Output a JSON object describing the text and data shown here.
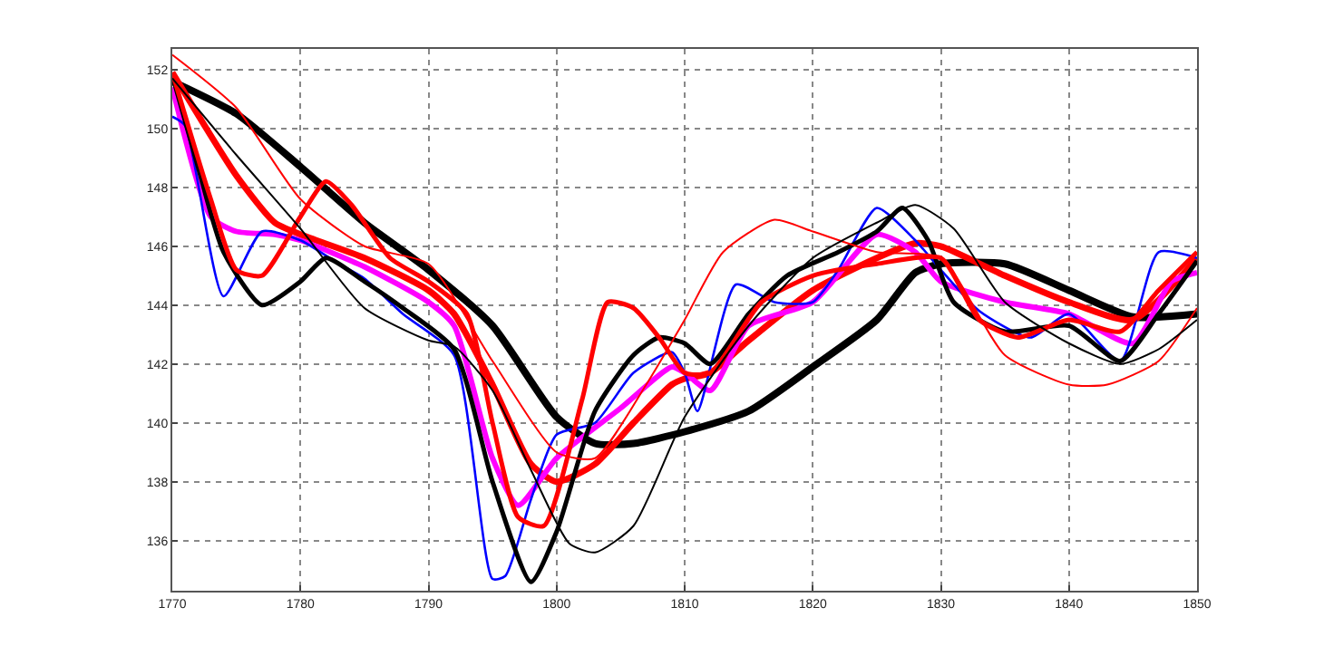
{
  "chart_data": {
    "type": "line",
    "xlim": [
      1770,
      1850
    ],
    "ylim": [
      134.3,
      152.7
    ],
    "xticks": [
      1770,
      1780,
      1790,
      1800,
      1810,
      1820,
      1830,
      1840,
      1850
    ],
    "yticks": [
      136,
      138,
      140,
      142,
      144,
      146,
      148,
      150,
      152
    ],
    "grid": true,
    "marker": "none",
    "series": [
      {
        "color": "#000000",
        "x": [
          1770,
          1775,
          1780,
          1785,
          1790,
          1795,
          1800,
          1803,
          1806,
          1810,
          1815,
          1820,
          1825,
          1828,
          1830,
          1835,
          1840,
          1845,
          1850
        ],
        "values": [
          151.6,
          150.5,
          148.7,
          146.8,
          145.2,
          143.3,
          140.2,
          139.3,
          139.3,
          139.7,
          140.4,
          141.9,
          143.5,
          145.1,
          145.4,
          145.4,
          144.5,
          143.6,
          143.7
        ]
      },
      {
        "color": "#ff0000",
        "x": [
          1770,
          1775,
          1778,
          1780,
          1785,
          1790,
          1792,
          1795,
          1798,
          1800,
          1803,
          1806,
          1809,
          1810,
          1812,
          1815,
          1820,
          1825,
          1828,
          1830,
          1835,
          1840,
          1845,
          1850
        ],
        "values": [
          151.9,
          148.4,
          146.8,
          146.4,
          145.6,
          144.5,
          143.7,
          141.3,
          138.6,
          138.0,
          138.6,
          140.0,
          141.3,
          141.5,
          141.7,
          142.8,
          144.5,
          145.6,
          146.1,
          146.0,
          145.0,
          144.1,
          143.5,
          145.6
        ]
      },
      {
        "color": "#ff00ff",
        "x": [
          1770,
          1773,
          1775,
          1778,
          1780,
          1785,
          1790,
          1792,
          1795,
          1797,
          1800,
          1805,
          1809,
          1810,
          1812,
          1815,
          1820,
          1825,
          1828,
          1830,
          1835,
          1840,
          1845,
          1848,
          1850
        ],
        "values": [
          151.4,
          147.0,
          146.5,
          146.4,
          146.2,
          145.3,
          144.1,
          143.3,
          138.8,
          137.2,
          138.8,
          140.5,
          141.9,
          141.7,
          141.1,
          143.3,
          144.1,
          146.4,
          145.8,
          144.8,
          144.1,
          143.7,
          142.7,
          144.8,
          145.1
        ]
      },
      {
        "color": "#0000ff",
        "x": [
          1770,
          1771,
          1774,
          1777,
          1780,
          1783,
          1785,
          1788,
          1792,
          1795,
          1796,
          1798,
          1800,
          1803,
          1806,
          1809,
          1810,
          1811,
          1814,
          1817,
          1820,
          1822,
          1825,
          1828,
          1830,
          1833,
          1837,
          1840,
          1844,
          1847,
          1850
        ],
        "values": [
          150.4,
          150.1,
          144.3,
          146.5,
          146.2,
          145.4,
          144.9,
          143.7,
          142.3,
          134.7,
          134.8,
          137.4,
          139.6,
          140.0,
          141.7,
          142.4,
          141.7,
          140.4,
          144.7,
          144.1,
          144.1,
          145.2,
          147.3,
          146.2,
          145.2,
          143.8,
          142.9,
          143.7,
          142.1,
          145.8,
          145.6
        ]
      },
      {
        "color": "#000000",
        "x": [
          1770,
          1772,
          1774,
          1777,
          1780,
          1782,
          1785,
          1788,
          1792,
          1795,
          1798,
          1800,
          1803,
          1806,
          1808,
          1810,
          1812,
          1815,
          1818,
          1822,
          1825,
          1827,
          1829,
          1831,
          1835,
          1840,
          1844,
          1847,
          1850
        ],
        "values": [
          151.8,
          148.7,
          145.8,
          144.0,
          144.8,
          145.6,
          144.8,
          143.9,
          142.5,
          138.0,
          134.6,
          136.3,
          140.4,
          142.3,
          142.9,
          142.7,
          142.0,
          143.7,
          145.0,
          145.8,
          146.5,
          147.3,
          146.2,
          144.1,
          143.1,
          143.3,
          142.1,
          143.7,
          145.5
        ]
      },
      {
        "color": "#ff0000",
        "x": [
          1770,
          1773,
          1775,
          1777,
          1780,
          1782,
          1784,
          1787,
          1790,
          1793,
          1795,
          1797,
          1799,
          1802,
          1804,
          1806,
          1808,
          1810,
          1812,
          1816,
          1820,
          1825,
          1830,
          1833,
          1836,
          1840,
          1844,
          1847,
          1850
        ],
        "values": [
          151.9,
          147.6,
          145.2,
          145.0,
          147.0,
          148.2,
          147.4,
          145.6,
          144.8,
          143.7,
          140.0,
          136.8,
          136.5,
          140.8,
          144.1,
          143.9,
          142.9,
          141.7,
          141.7,
          144.1,
          145.0,
          145.4,
          145.6,
          143.5,
          142.9,
          143.5,
          143.1,
          144.5,
          145.8
        ]
      },
      {
        "color": "#ff0000",
        "x": [
          1770,
          1775,
          1780,
          1785,
          1790,
          1795,
          1800,
          1803,
          1807,
          1810,
          1813,
          1817,
          1820,
          1825,
          1830,
          1835,
          1840,
          1843,
          1847,
          1850
        ],
        "values": [
          152.5,
          150.7,
          147.6,
          146.0,
          145.4,
          142.1,
          139.0,
          138.8,
          141.3,
          143.5,
          145.8,
          146.9,
          146.5,
          145.8,
          145.6,
          142.3,
          141.3,
          141.3,
          142.1,
          143.9
        ]
      },
      {
        "color": "#000000",
        "x": [
          1770,
          1775,
          1780,
          1785,
          1790,
          1792,
          1795,
          1798,
          1801,
          1803,
          1806,
          1810,
          1815,
          1820,
          1825,
          1828,
          1831,
          1835,
          1840,
          1844,
          1847,
          1850
        ],
        "values": [
          151.7,
          149.1,
          146.6,
          143.9,
          142.8,
          142.6,
          141.1,
          138.4,
          135.9,
          135.6,
          136.5,
          140.2,
          143.3,
          145.6,
          146.8,
          147.4,
          146.6,
          144.1,
          142.7,
          142.0,
          142.5,
          143.5
        ]
      }
    ]
  }
}
